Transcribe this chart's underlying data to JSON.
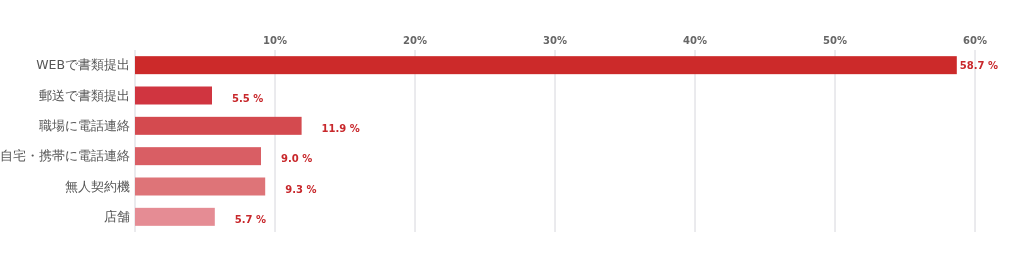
{
  "chart_data": {
    "type": "bar",
    "orientation": "horizontal",
    "categories": [
      "WEBで書類提出",
      "郵送で書類提出",
      "職場に電話連絡",
      "自宅・携帯に電話連絡",
      "無人契約機",
      "店舗"
    ],
    "values": [
      58.7,
      5.5,
      11.9,
      9.0,
      9.3,
      5.7
    ],
    "value_labels": [
      "58.7 %",
      "5.5 %",
      "11.9 %",
      "9.0 %",
      "9.3 %",
      "5.7 %"
    ],
    "colors": [
      "#cc2a2a",
      "#d03540",
      "#d44a4f",
      "#d95e64",
      "#de7478",
      "#e58c94"
    ],
    "xlim": [
      0,
      60
    ],
    "xticks": [
      {
        "value": 10,
        "label": "10%"
      },
      {
        "value": 20,
        "label": "20%"
      },
      {
        "value": 30,
        "label": "30%"
      },
      {
        "value": 40,
        "label": "40%"
      },
      {
        "value": 50,
        "label": "50%"
      },
      {
        "value": 60,
        "label": "60%"
      }
    ],
    "grid": "x"
  }
}
